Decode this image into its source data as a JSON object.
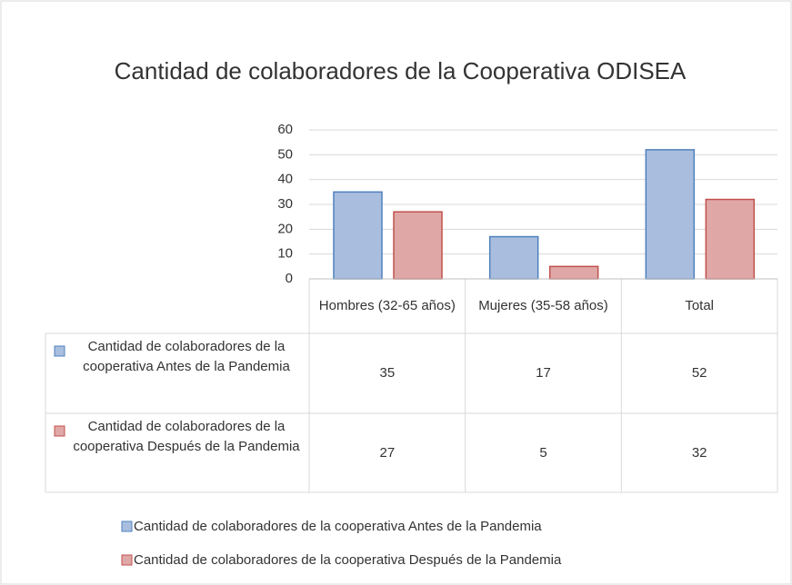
{
  "chart_data": {
    "type": "bar",
    "title": "Cantidad de colaboradores de la Cooperativa ODISEA",
    "categories": [
      "Hombres (32-65 años)",
      "Mujeres (35-58 años)",
      "Total"
    ],
    "series": [
      {
        "name": "Cantidad de colaboradores de la cooperativa Antes de la Pandemia",
        "color": "#4f81bd",
        "values": [
          35,
          17,
          52
        ]
      },
      {
        "name": "Cantidad de colaboradores de la cooperativa Después de la Pandemia",
        "color": "#c0504d",
        "values": [
          27,
          5,
          32
        ]
      }
    ],
    "ylim": [
      0,
      60
    ],
    "yticks": [
      0,
      10,
      20,
      30,
      40,
      50,
      60
    ],
    "grid": true,
    "legend": "bottom"
  }
}
